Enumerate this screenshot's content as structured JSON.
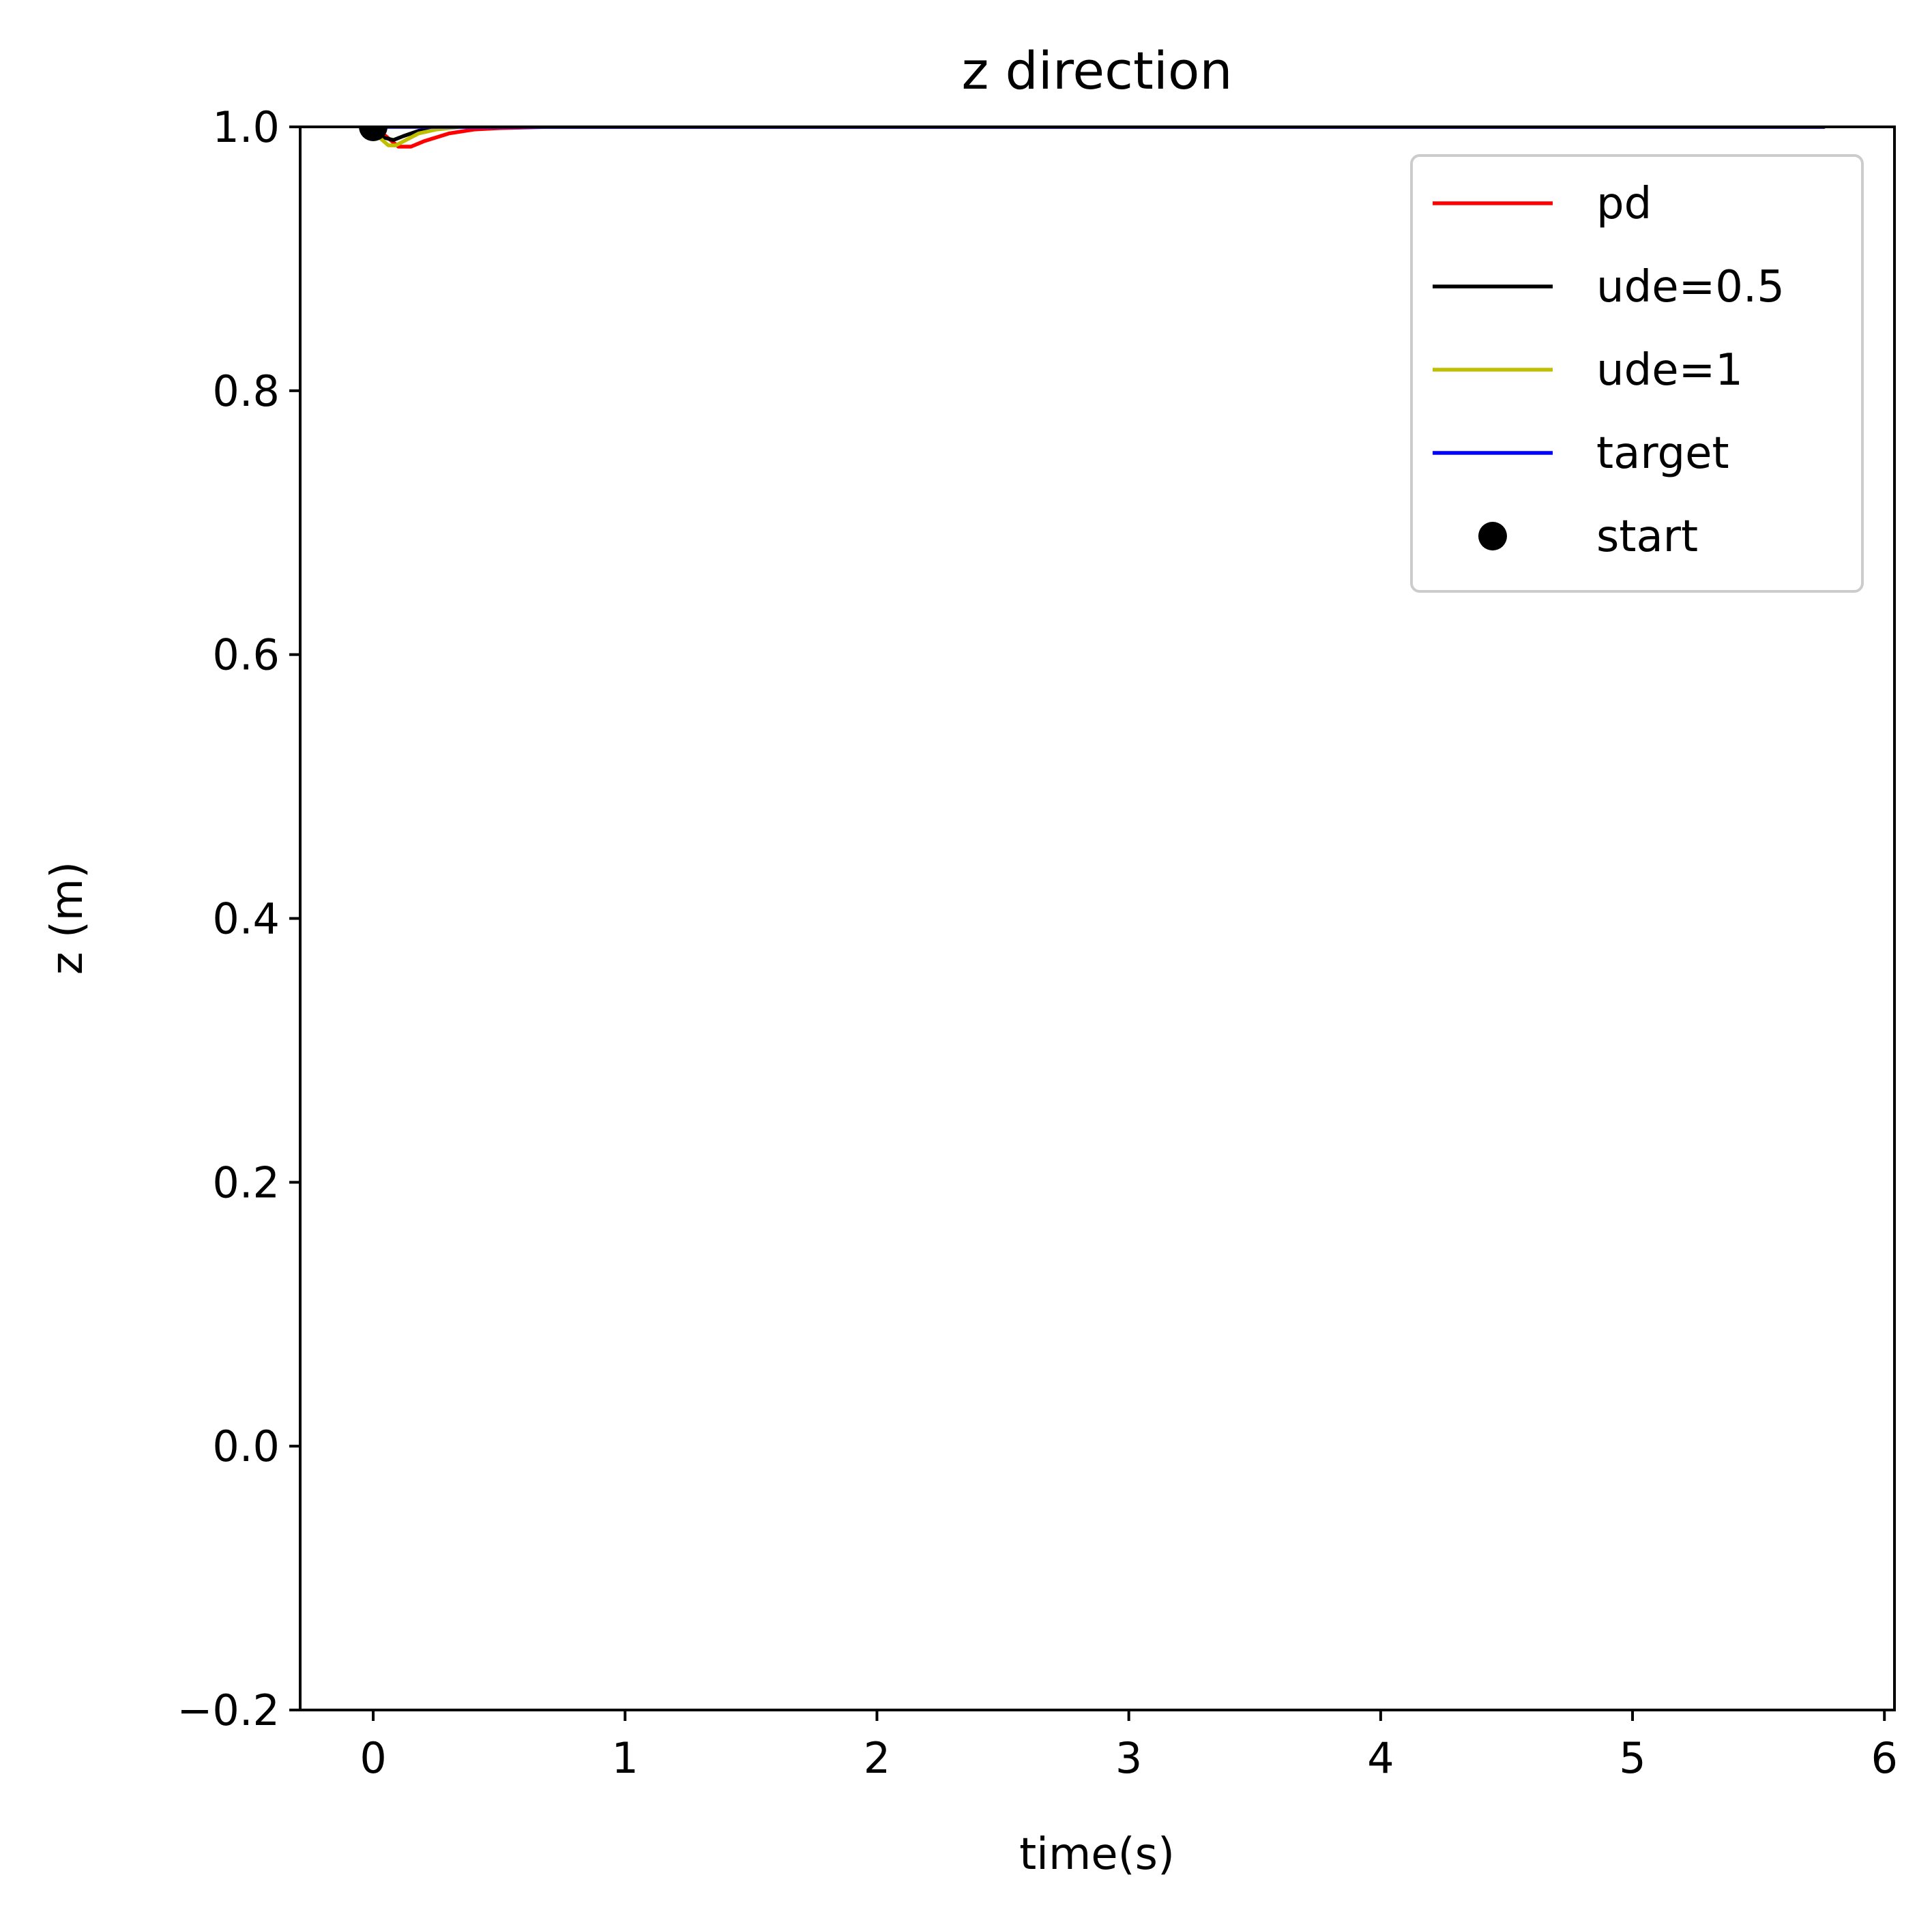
{
  "chart_data": {
    "type": "line",
    "title": "z direction",
    "xlabel": "time(s)",
    "ylabel": "z (m)",
    "xlim": [
      -0.29,
      6.04
    ],
    "ylim": [
      -0.2,
      1.0
    ],
    "xticks": [
      0,
      1,
      2,
      3,
      4,
      5,
      6
    ],
    "xtick_labels": [
      "0",
      "1",
      "2",
      "3",
      "4",
      "5",
      "6"
    ],
    "yticks": [
      -0.2,
      0.0,
      0.2,
      0.4,
      0.6,
      0.8,
      1.0
    ],
    "ytick_labels": [
      "−0.2",
      "0.0",
      "0.2",
      "0.4",
      "0.6",
      "0.8",
      "1.0"
    ],
    "grid": false,
    "legend_position": "top-right",
    "series": [
      {
        "name": "pd",
        "color": "#ff0000",
        "x": [
          0.0,
          0.05,
          0.1,
          0.15,
          0.2,
          0.3,
          0.4,
          0.5,
          0.7,
          1.0,
          2.0,
          3.0,
          4.0,
          5.0,
          5.76
        ],
        "y": [
          1.0,
          0.993,
          0.985,
          0.985,
          0.989,
          0.995,
          0.998,
          0.999,
          1.0,
          1.0,
          1.0,
          1.0,
          1.0,
          1.0,
          1.0
        ]
      },
      {
        "name": "ude=0.5",
        "color": "#000000",
        "x": [
          0.0,
          0.04,
          0.08,
          0.12,
          0.18,
          0.25,
          0.35,
          0.5,
          1.0,
          2.0,
          3.0,
          4.0,
          5.0,
          5.76
        ],
        "y": [
          1.0,
          0.992,
          0.99,
          0.993,
          0.997,
          0.999,
          1.0,
          1.0,
          1.0,
          1.0,
          1.0,
          1.0,
          1.0,
          1.0
        ]
      },
      {
        "name": "ude=1",
        "color": "#bfbf00",
        "x": [
          0.0,
          0.03,
          0.06,
          0.09,
          0.13,
          0.18,
          0.25,
          0.35,
          0.5,
          1.0,
          2.0,
          3.0,
          4.0,
          5.0,
          5.76
        ],
        "y": [
          1.0,
          0.991,
          0.986,
          0.986,
          0.99,
          0.995,
          0.998,
          1.0,
          1.0,
          1.0,
          1.0,
          1.0,
          1.0,
          1.0,
          1.0
        ]
      },
      {
        "name": "target",
        "color": "#0000ff",
        "x": [
          0.0,
          0.05,
          5.76
        ],
        "y": [
          1.0,
          1.0,
          1.0
        ]
      }
    ],
    "markers": [
      {
        "name": "start",
        "color": "#000000",
        "x": 0.0,
        "y": 1.0
      }
    ]
  }
}
